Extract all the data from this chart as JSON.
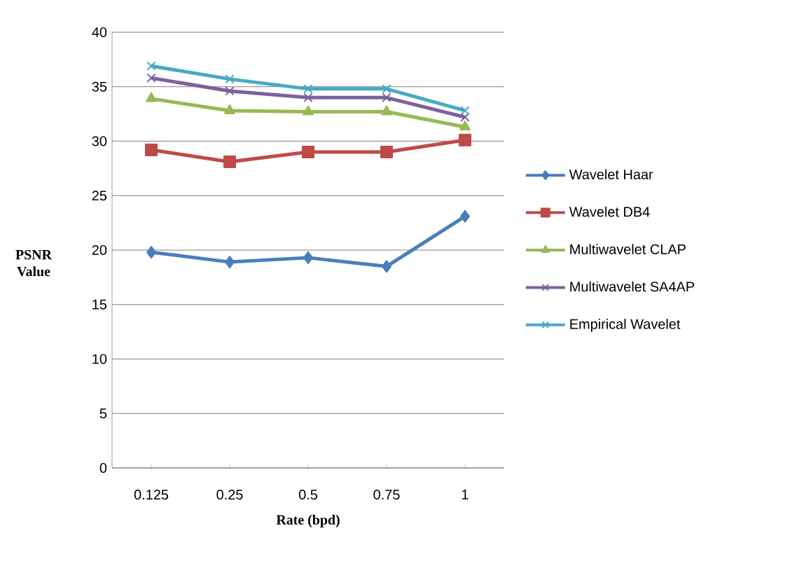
{
  "chart_data": {
    "type": "line",
    "xlabel": "Rate (bpd)",
    "ylabel": "PSNR Value",
    "categories": [
      "0.125",
      "0.25",
      "0.5",
      "0.75",
      "1"
    ],
    "ylim": [
      0,
      40
    ],
    "yticks": [
      0,
      5,
      10,
      15,
      20,
      25,
      30,
      35,
      40
    ],
    "grid": "y",
    "legend": "right",
    "line_style": "solid",
    "series": [
      {
        "name": "Wavelet Haar",
        "color": "#4a7ebb",
        "marker": "diamond",
        "values": [
          19.8,
          18.9,
          19.3,
          18.5,
          23.1
        ]
      },
      {
        "name": "Wavelet DB4",
        "color": "#be4b48",
        "marker": "square",
        "values": [
          29.2,
          28.1,
          29.0,
          29.0,
          30.1
        ]
      },
      {
        "name": "Multiwavelet CLAP",
        "color": "#98b954",
        "marker": "triangle",
        "values": [
          33.9,
          32.8,
          32.7,
          32.7,
          31.3
        ]
      },
      {
        "name": "Multiwavelet SA4AP",
        "color": "#7d60a0",
        "marker": "cross",
        "values": [
          35.8,
          34.6,
          34.0,
          34.0,
          32.2
        ]
      },
      {
        "name": "Empirical Wavelet",
        "color": "#46aac5",
        "marker": "cross",
        "values": [
          36.9,
          35.7,
          34.8,
          34.8,
          32.8
        ]
      }
    ]
  }
}
